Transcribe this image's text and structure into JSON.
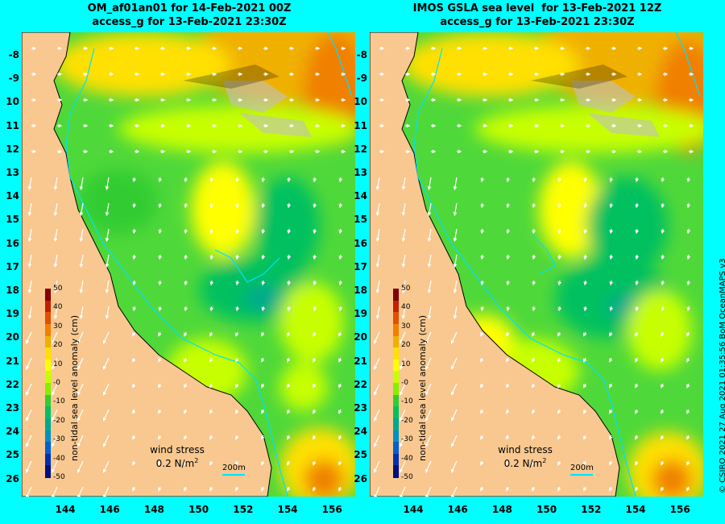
{
  "panels": [
    {
      "title_line1": "OM_af01an01 for 14-Feb-2021 00Z",
      "title_line2": "access_g for 13-Feb-2021 23:30Z"
    },
    {
      "title_line1": "IMOS GSLA sea level  for 13-Feb-2021 12Z",
      "title_line2": "access_g for 13-Feb-2021 23:30Z"
    }
  ],
  "lat_ticks": [
    "-8",
    "-9",
    "10",
    "11",
    "12",
    "13",
    "14",
    "15",
    "16",
    "17",
    "18",
    "19",
    "20",
    "21",
    "22",
    "23",
    "24",
    "25",
    "26"
  ],
  "lon_ticks": [
    "144",
    "146",
    "148",
    "150",
    "152",
    "154",
    "156"
  ],
  "colorbar": {
    "title": "non-tidal sea level anomaly (cm)",
    "ticks": [
      "50",
      "40",
      "30",
      "20",
      "10",
      "-0",
      "-10",
      "-20",
      "-30",
      "-40",
      "-50"
    ],
    "colors": [
      "#800000",
      "#c22000",
      "#e05000",
      "#f08000",
      "#f0b000",
      "#ffe000",
      "#ffff00",
      "#c8ff00",
      "#88ee00",
      "#33cc33",
      "#00c060",
      "#00a890",
      "#0090c0",
      "#0060d0",
      "#0030b0",
      "#001080"
    ]
  },
  "wind": {
    "label": "wind stress",
    "value": "0.2 N/m",
    "exponent": "2"
  },
  "scale_label": "200m",
  "credit": "© CSIRO 2021   27 Aug 2021 01:35:56 BoM OceanMAPS v3",
  "colors": {
    "frame": "#00ffff",
    "land": "#f8c890",
    "sea_base": "#33cc33",
    "isobath": "#00e0ff"
  }
}
